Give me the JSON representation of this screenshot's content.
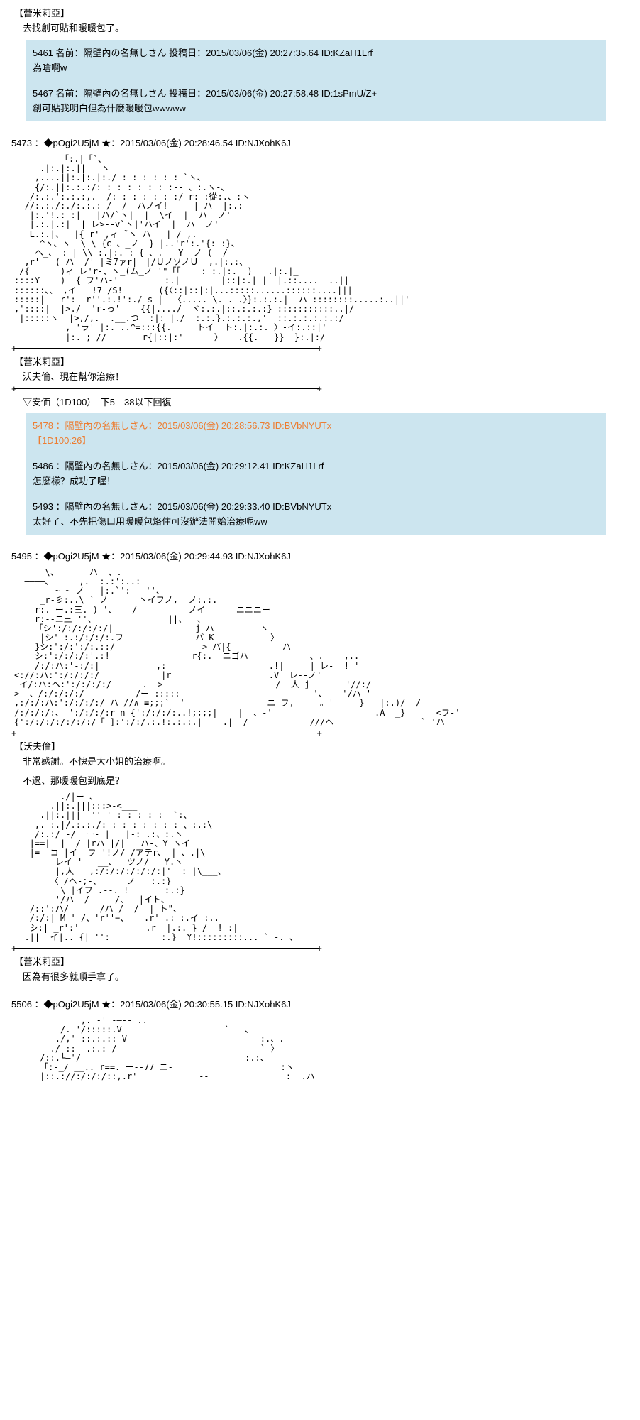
{
  "section1": {
    "character": "【蕾米莉亞】",
    "dialogue": "去找創可貼和暖暖包了。",
    "quotes": [
      {
        "header": "5461 名前：隔壁內の名無しさん 投稿日：2015/03/06(金) 20:27:35.64 ID:KZaH1Lrf",
        "body": "為啥啊w"
      },
      {
        "header": "5467 名前：隔壁內の名無しさん 投稿日：2015/03/06(金) 20:27:58.48 ID:1sPmU/Z+",
        "body": "創可貼我明白但為什麼暖暖包wwwww"
      }
    ]
  },
  "post5473": {
    "header": "5473 ：◆pOgi2U5jM ★：2015/03/06(金) 20:28:46.54 ID:NJXohK6J",
    "ascii": "         「:.|「`、\n     .|:.|:.|| __ヽ__\n    ,....||:.|:.|:./ : : : : : : `ヽ、\n    {/:.||:.:.:/: : : : : : : :-- 、:.ヽ-、\n   /:.:.':.:.:,. -/: : : : : : :/-r: :從:.、:ヽ\n  //:.:./:./:.:.: /  /  ハノイ!     | ハ  |:.:\n   |:.'!.: :|   |ハ/`ヽ|  |  \\イ  |  ハ  ノ'\n   |.:.|.:|  | レ>--v`ヽ|'ハイ  |  ハ  ノ'\n   L.:.|、  |{ r' ,ィ ̄`ヽ ハ   | / ,.\n     ^ヽ、ヽ  \\ \\ {c 、_ノ  } |..'r':.'{: :}、\n    ヘ_、 : | \\\\ :.|:. : { 、.   Y  ノ (  /\n  ,r'   ( ハ  /' |ミ7ァr|＿|/ＵノソノＵ  ,.|:.:、\n /{      )ィ レ'r-、ヽ_(ム_ノ ′\"「｢    : :.|:.  )   .|:.|_\n::::Y    )  { フ'ハ-'         :.|        |::|:.| |  |.::....__..||\n::::::、、 ,イ   !7 /S!       ({〈::|::|:|...:::::......::::::....|||\n:::::|   r':  r''.:.!':./ s |  〈..... \\. . .〉}:.:.:.|  ハ ::::::::.....:..||'\n,'::::|  |>./  'r-っ'    {{|..../  ヾ:.:.|::.:.:.:} :::::::::::..|/\n |:::::ヽ  |>,/,.  .__.つ  :|: |./  :.:.}.:.:.:.,'  ::.:.:.:.:.:/\n          , 'ラ' |:. ..^=:::{{.     トイ  ト:.|:.:. 〉-イ:.::|'\n          |:. ; //       r{|::|:'      〉   .{{.   }}  }:.|:/\n",
    "character": "【蕾米莉亞】",
    "dialogue": "沃夫倫、現在幫你治療！"
  },
  "anka": {
    "text": "▽安価（1D100）　下5　38以下回復",
    "quotes": [
      {
        "header": "5478 ：隔壁內の名無しさん：2015/03/06(金) 20:28:56.73 ID:BVbNYUTx",
        "body": "【1D100:26】",
        "highlight": true
      },
      {
        "header": "5486 ：隔壁內の名無しさん：2015/03/06(金) 20:29:12.41 ID:KZaH1Lrf",
        "body": "怎麼樣？成功了喔！"
      },
      {
        "header": "5493 ：隔壁內の名無しさん：2015/03/06(金) 20:29:33.40 ID:BVbNYUTx",
        "body": "太好了、不先把傷口用暖暖包烙住可沒辦法開始治療呢ww"
      }
    ]
  },
  "post5495": {
    "header": "5495 ：◆pOgi2U5jM ★：2015/03/06(金) 20:29:44.93 ID:NJXohK6J",
    "ascii1": "      \\、      ハ  、.\n  ————、     ,.  :.:':..:\n        ~―~ ノ   |:.`':―――''、\n     _r-彡:..\\ ` ノ      丶イフノ,  ノ:.:.\n    r:. ー.:三. ) '、   /          ノイ      ニニニー\n    r:--ニ三 ''、              ||、  、\n    「シ':/:/:/:/:/|                j ハ         ヽ\n     |シ' :.:/:/:/:.フ              バ K           〉\n    }シ:':/:':/:.::/                 > バ|{          ハ\n    シ:':/:/:/:'.:!                r{:.  ニゴハ            、.    ,..\n    /:/:ハ:'-:/:|           ,:                    .!|     | レ-  ! '\n<://:ハ:':/:/:/:/            |r                   .V  レ--ノ'\n イ/:ハ:ヘ:':/:/:/:/      .  >__                    /  人 j       '//:/\n>  、/:/:/:/:/          /ー-:::::                          '、   '/ハ-'\n,:/:/:ハ:':/:/:/:/ ハ //∧ ≡;;;`  '                ニ フ,     。'     }   |:.)/  / \n/:/:/:/:、 ':/:/:/:r n {':/:/:/:..!;;;;|    |  、-'                    .A  _}      <フ-'\n{':/:/:/:/:/:/:/「 ]:':/:/.:.!:.:.:.|    .|  /            ///ヘ                 ` 'ハ\n",
    "character1": "【沃夫倫】",
    "dialogue1a": "非常感謝。不愧是大小姐的治療啊。",
    "dialogue1b": "不過、那暖暖包到底是？",
    "ascii2": "         ./|ー-、\n       .||:.|||:::>-<___\n     .||:.|||  '' ' : : : : :  `:、\n    ,. :.|/.:.:./: : : : : : : : 、:.:\\\n    /:.:/ -/  ー- |   |-: .:、:.ヽ\n   |==|  |  / |rハ |/|   ハ-、Y ヽイ\n   |=  コ |イ  フ '!ノ/ /アテr、 | 、.|\\\n        レイ '   __、  ツノ/   Y.ヽ\n        |,人   ,:/:/:/:/:/:/:|'  : |\\___、\n       〈 /ヘ-;-、     ノ   :.:}\n         \\ |イフ .--.|!       :.:}\n        '/ハ  /     /、  |イト、\n   /::':ハ/      /ハ /  /  | ト\"、\n   /:/:| М ' /、'r''−、   .r' .: :.イ :..\n   シ:| _r':'             .r  |.:. } /  ! :|\n  .||  イ|.. {||'':          :.}  Y!:::::::::... ` -. 、\n",
    "character2": "【蕾米莉亞】",
    "dialogue2": "因為有很多就順手拿了。"
  },
  "post5506": {
    "header": "5506 ：◆pOgi2U5jM ★：2015/03/06(金) 20:30:55.15 ID:NJXohK6J",
    "ascii": "             ,. -' ‐―-- ..__\n         /. '/:::::.V                    `  -、\n        ./,' ::.:.:: V                          :.、.\n       ./ ::--.:.: /                            ` 〉\n     /::.└―'/                                :.:、\n     「:-_/ __.. r==. ー--77 ニ-                     :ヽ\n     |::.://:/:/:/::,.r'            --               :  .ハ\n"
  }
}
